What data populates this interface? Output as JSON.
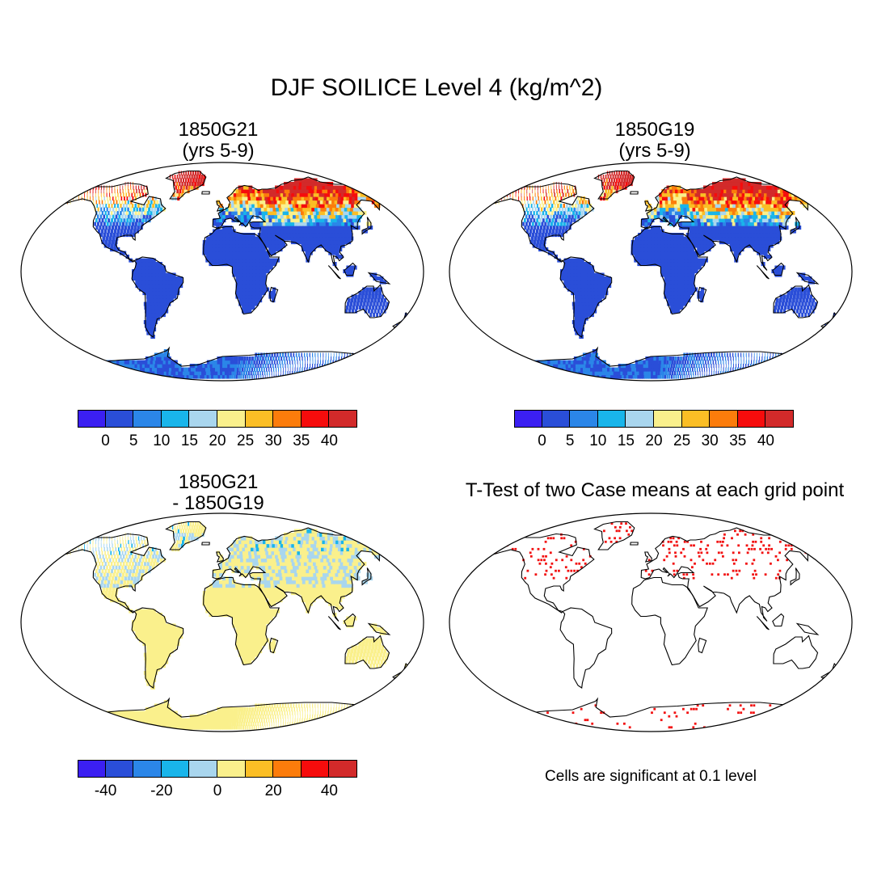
{
  "figure": {
    "title": "DJF SOILICE Level 4 (kg/m^2)",
    "note": "Cells are significant at 0.1 level"
  },
  "colors": {
    "palette": [
      "#3b1ff2",
      "#2a4ed8",
      "#2b86e8",
      "#19b5ea",
      "#a9d6ee",
      "#faf08c",
      "#fbbe25",
      "#fc7c0b",
      "#f60c0c",
      "#d22a2a"
    ],
    "ocean": "#ffffff",
    "outline": "#000000",
    "significant": "#f21010"
  },
  "panels": [
    {
      "id": "1850G21",
      "title_line1": "1850G21",
      "title_line2": "(yrs 5-9)",
      "type": "field",
      "colorbar_labels": [
        "0",
        "5",
        "10",
        "15",
        "20",
        "25",
        "30",
        "35",
        "40"
      ]
    },
    {
      "id": "1850G19",
      "title_line1": "1850G19",
      "title_line2": "(yrs 5-9)",
      "type": "field",
      "colorbar_labels": [
        "0",
        "5",
        "10",
        "15",
        "20",
        "25",
        "30",
        "35",
        "40"
      ]
    },
    {
      "id": "difference",
      "title_line1": "1850G21",
      "title_line2": "- 1850G19",
      "type": "difference",
      "colorbar_labels": [
        "-40",
        "-20",
        "0",
        "20",
        "40"
      ]
    },
    {
      "id": "ttest",
      "title_line1": "T-Test of two Case means at each grid point",
      "type": "significance"
    }
  ]
}
